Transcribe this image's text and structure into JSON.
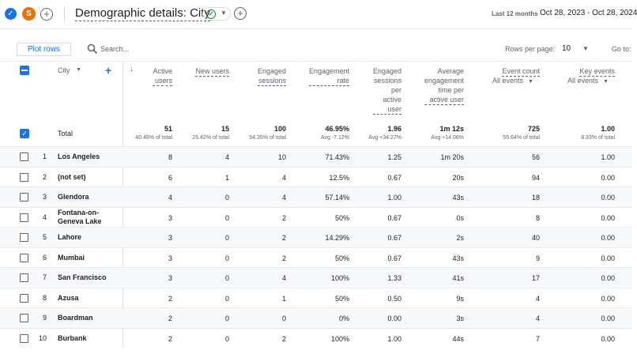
{
  "header": {
    "check_icon": "check-circle-icon",
    "avatar_letter": "S",
    "title": "Demographic details: City",
    "date_label": "Last 12 months",
    "date_range": "Oct 28, 2023 - Oct 28, 2024"
  },
  "toolbar": {
    "plot_rows_label": "Plot rows",
    "search_placeholder": "Search...",
    "rows_per_page_label": "Rows per page:",
    "rows_per_page_value": "10",
    "goto_label": "Go to:"
  },
  "table": {
    "dimension_header": "City",
    "columns": [
      {
        "label": "Active\nusers"
      },
      {
        "label": "New users"
      },
      {
        "label": "Engaged\nsessions"
      },
      {
        "label": "Engagement\nrate"
      },
      {
        "label": "Engaged\nsessions\nper\nactive\nuser"
      },
      {
        "label": "Average\nengagement\ntime per\nactive user"
      },
      {
        "label": "Event count",
        "sub": "All events"
      },
      {
        "label": "Key events",
        "sub": "All events"
      }
    ],
    "total": {
      "label": "Total",
      "values": [
        "51",
        "15",
        "100",
        "46.95%",
        "1.96",
        "1m 12s",
        "725",
        "1.00"
      ],
      "subs": [
        "40.48% of total",
        "25.42% of total",
        "54.35% of total",
        "Avg -7.12%",
        "Avg +34.27%",
        "Avg +14.06%",
        "55.64% of total",
        "8.33% of total"
      ]
    },
    "rows": [
      {
        "idx": "1",
        "city": "Los Angeles",
        "values": [
          "8",
          "4",
          "10",
          "71.43%",
          "1.25",
          "1m 20s",
          "56",
          "1.00"
        ]
      },
      {
        "idx": "2",
        "city": "(not set)",
        "values": [
          "6",
          "1",
          "4",
          "12.5%",
          "0.67",
          "20s",
          "94",
          "0.00"
        ]
      },
      {
        "idx": "3",
        "city": "Glendora",
        "values": [
          "4",
          "0",
          "4",
          "57.14%",
          "1.00",
          "43s",
          "18",
          "0.00"
        ]
      },
      {
        "idx": "4",
        "city": "Fontana-on-\nGeneva Lake",
        "values": [
          "3",
          "0",
          "2",
          "50%",
          "0.67",
          "0s",
          "8",
          "0.00"
        ]
      },
      {
        "idx": "5",
        "city": "Lahore",
        "values": [
          "3",
          "0",
          "2",
          "14.29%",
          "0.67",
          "2s",
          "40",
          "0.00"
        ]
      },
      {
        "idx": "6",
        "city": "Mumbai",
        "values": [
          "3",
          "0",
          "2",
          "50%",
          "0.67",
          "43s",
          "9",
          "0.00"
        ]
      },
      {
        "idx": "7",
        "city": "San Francisco",
        "values": [
          "3",
          "0",
          "4",
          "100%",
          "1.33",
          "41s",
          "17",
          "0.00"
        ]
      },
      {
        "idx": "8",
        "city": "Azusa",
        "values": [
          "2",
          "0",
          "1",
          "50%",
          "0.50",
          "9s",
          "4",
          "0.00"
        ]
      },
      {
        "idx": "9",
        "city": "Boardman",
        "values": [
          "2",
          "0",
          "0",
          "0%",
          "0.00",
          "3s",
          "4",
          "0.00"
        ]
      },
      {
        "idx": "10",
        "city": "Burbank",
        "values": [
          "2",
          "0",
          "2",
          "100%",
          "1.00",
          "44s",
          "7",
          "0.00"
        ]
      }
    ]
  }
}
